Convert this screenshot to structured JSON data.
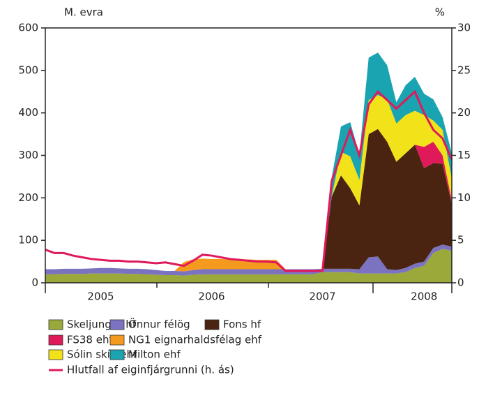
{
  "chart_data": {
    "type": "stacked_area",
    "y_label": "M. evra",
    "y2_label": "%",
    "categories": [
      null,
      null,
      null,
      null,
      null,
      null,
      "2005",
      null,
      null,
      null,
      null,
      null,
      null,
      null,
      null,
      null,
      null,
      null,
      "2006",
      null,
      null,
      null,
      null,
      null,
      null,
      null,
      null,
      null,
      null,
      null,
      "2007",
      null,
      null,
      null,
      null,
      null,
      null,
      null,
      null,
      null,
      null,
      "2008",
      null,
      null,
      null
    ],
    "ylim": [
      0,
      600
    ],
    "yticks": [
      0,
      100,
      200,
      300,
      400,
      500,
      600
    ],
    "y2lim": [
      0,
      30
    ],
    "y2ticks": [
      0,
      5,
      10,
      15,
      20,
      25,
      30
    ],
    "series": [
      {
        "name": "Skeljungur hf",
        "color": "#9aa93a",
        "values": [
          20,
          20,
          21,
          21,
          21,
          22,
          22,
          22,
          22,
          21,
          21,
          20,
          19,
          18,
          18,
          17,
          19,
          20,
          20,
          20,
          20,
          20,
          20,
          20,
          20,
          20,
          20,
          20,
          20,
          20,
          25,
          25,
          25,
          25,
          22,
          22,
          22,
          22,
          22,
          25,
          35,
          40,
          70,
          80,
          75
        ]
      },
      {
        "name": "Önnur félög",
        "color": "#7b72c0",
        "values": [
          12,
          12,
          12,
          12,
          12,
          12,
          13,
          13,
          12,
          12,
          12,
          12,
          11,
          10,
          10,
          10,
          11,
          12,
          12,
          12,
          12,
          12,
          12,
          12,
          12,
          12,
          12,
          12,
          12,
          12,
          8,
          8,
          8,
          8,
          10,
          38,
          40,
          10,
          8,
          10,
          10,
          10,
          12,
          10,
          10
        ]
      },
      {
        "name": "Fons hf",
        "color": "#4a2410",
        "values": [
          0,
          0,
          0,
          0,
          0,
          0,
          0,
          0,
          0,
          0,
          0,
          0,
          0,
          0,
          0,
          0,
          0,
          0,
          0,
          0,
          0,
          0,
          0,
          0,
          0,
          0,
          0,
          0,
          0,
          0,
          0,
          170,
          220,
          190,
          150,
          290,
          300,
          300,
          255,
          270,
          280,
          220,
          200,
          190,
          100
        ]
      },
      {
        "name": "FS38 ehf",
        "color": "#e0195a",
        "values": [
          0,
          0,
          0,
          0,
          0,
          0,
          0,
          0,
          0,
          0,
          0,
          0,
          0,
          0,
          0,
          0,
          0,
          0,
          0,
          0,
          0,
          0,
          0,
          0,
          0,
          0,
          0,
          0,
          0,
          0,
          0,
          0,
          0,
          0,
          0,
          0,
          0,
          0,
          0,
          0,
          0,
          50,
          50,
          20,
          10
        ]
      },
      {
        "name": "NG1 eignarhaldsfélag ehf",
        "color": "#f39a1f",
        "values": [
          0,
          0,
          0,
          0,
          0,
          0,
          0,
          0,
          0,
          0,
          0,
          0,
          0,
          0,
          0,
          22,
          25,
          25,
          24,
          24,
          23,
          23,
          23,
          22,
          22,
          22,
          0,
          0,
          0,
          0,
          0,
          0,
          0,
          0,
          0,
          0,
          0,
          0,
          0,
          0,
          0,
          0,
          0,
          0,
          0
        ]
      },
      {
        "name": "Sólin skín ehf",
        "color": "#f2e21a",
        "values": [
          0,
          0,
          0,
          0,
          0,
          0,
          0,
          0,
          0,
          0,
          0,
          0,
          0,
          0,
          0,
          0,
          0,
          0,
          0,
          0,
          0,
          0,
          0,
          0,
          0,
          0,
          0,
          0,
          0,
          0,
          0,
          0,
          55,
          75,
          60,
          80,
          80,
          100,
          90,
          90,
          80,
          75,
          50,
          60,
          50
        ]
      },
      {
        "name": "Milton ehf",
        "color": "#1aa3b0",
        "values": [
          0,
          0,
          0,
          0,
          0,
          0,
          0,
          0,
          0,
          0,
          0,
          0,
          0,
          0,
          0,
          0,
          0,
          0,
          0,
          0,
          0,
          0,
          0,
          0,
          0,
          0,
          0,
          0,
          0,
          0,
          0,
          45,
          60,
          80,
          60,
          100,
          100,
          80,
          50,
          70,
          80,
          50,
          50,
          30,
          60
        ]
      },
      {
        "name": "Hlutfall af eiginfjárgrunni (h. ás)",
        "color": "#e0195a",
        "type": "line",
        "axis": "y2",
        "values": [
          3.9,
          3.5,
          3.5,
          3.2,
          3.0,
          2.8,
          2.7,
          2.6,
          2.6,
          2.5,
          2.5,
          2.4,
          2.3,
          2.4,
          2.2,
          2.0,
          2.6,
          3.3,
          3.2,
          3.0,
          2.8,
          2.7,
          2.6,
          2.5,
          2.5,
          2.4,
          1.4,
          1.4,
          1.4,
          1.4,
          1.4,
          12,
          15,
          18,
          15,
          21,
          22.5,
          21.5,
          20.5,
          21.5,
          22.5,
          20,
          18,
          17,
          14.5
        ]
      }
    ]
  }
}
